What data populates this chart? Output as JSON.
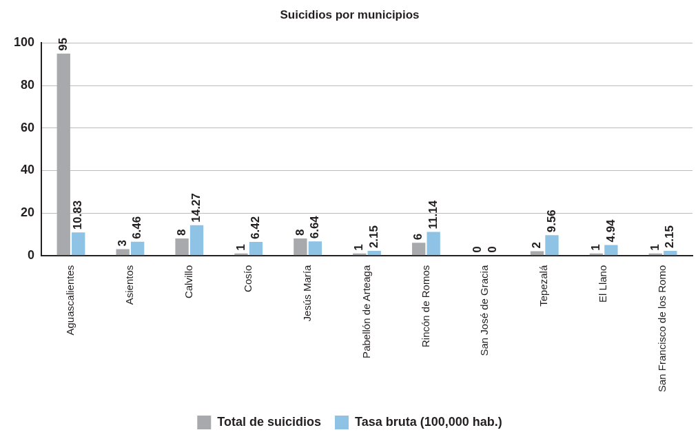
{
  "chart_data": {
    "type": "bar",
    "title": "Suicidios por municipios",
    "categories": [
      "Aguascalientes",
      "Asientos",
      "Calvillo",
      "Cosío",
      "Jesús María",
      "Pabellón de Arteaga",
      "Rincón de Romos",
      "San José de Gracia",
      "Tepezalá",
      "El Llano",
      "San Francisco de los Romo"
    ],
    "series": [
      {
        "name": "Total de suicidios",
        "color": "#a7a9ac",
        "values": [
          95,
          3,
          8,
          1,
          8,
          1,
          6,
          0,
          2,
          1,
          1
        ]
      },
      {
        "name": "Tasa bruta (100,000 hab.)",
        "color": "#8ec3e6",
        "values": [
          10.83,
          6.46,
          14.27,
          6.42,
          6.64,
          2.15,
          11.14,
          0,
          9.56,
          4.94,
          2.15
        ]
      }
    ],
    "ylim": [
      0,
      100
    ],
    "yticks": [
      0,
      20,
      40,
      60,
      80,
      100
    ],
    "grid": "y",
    "legend": "bottom",
    "data_labels": true
  }
}
